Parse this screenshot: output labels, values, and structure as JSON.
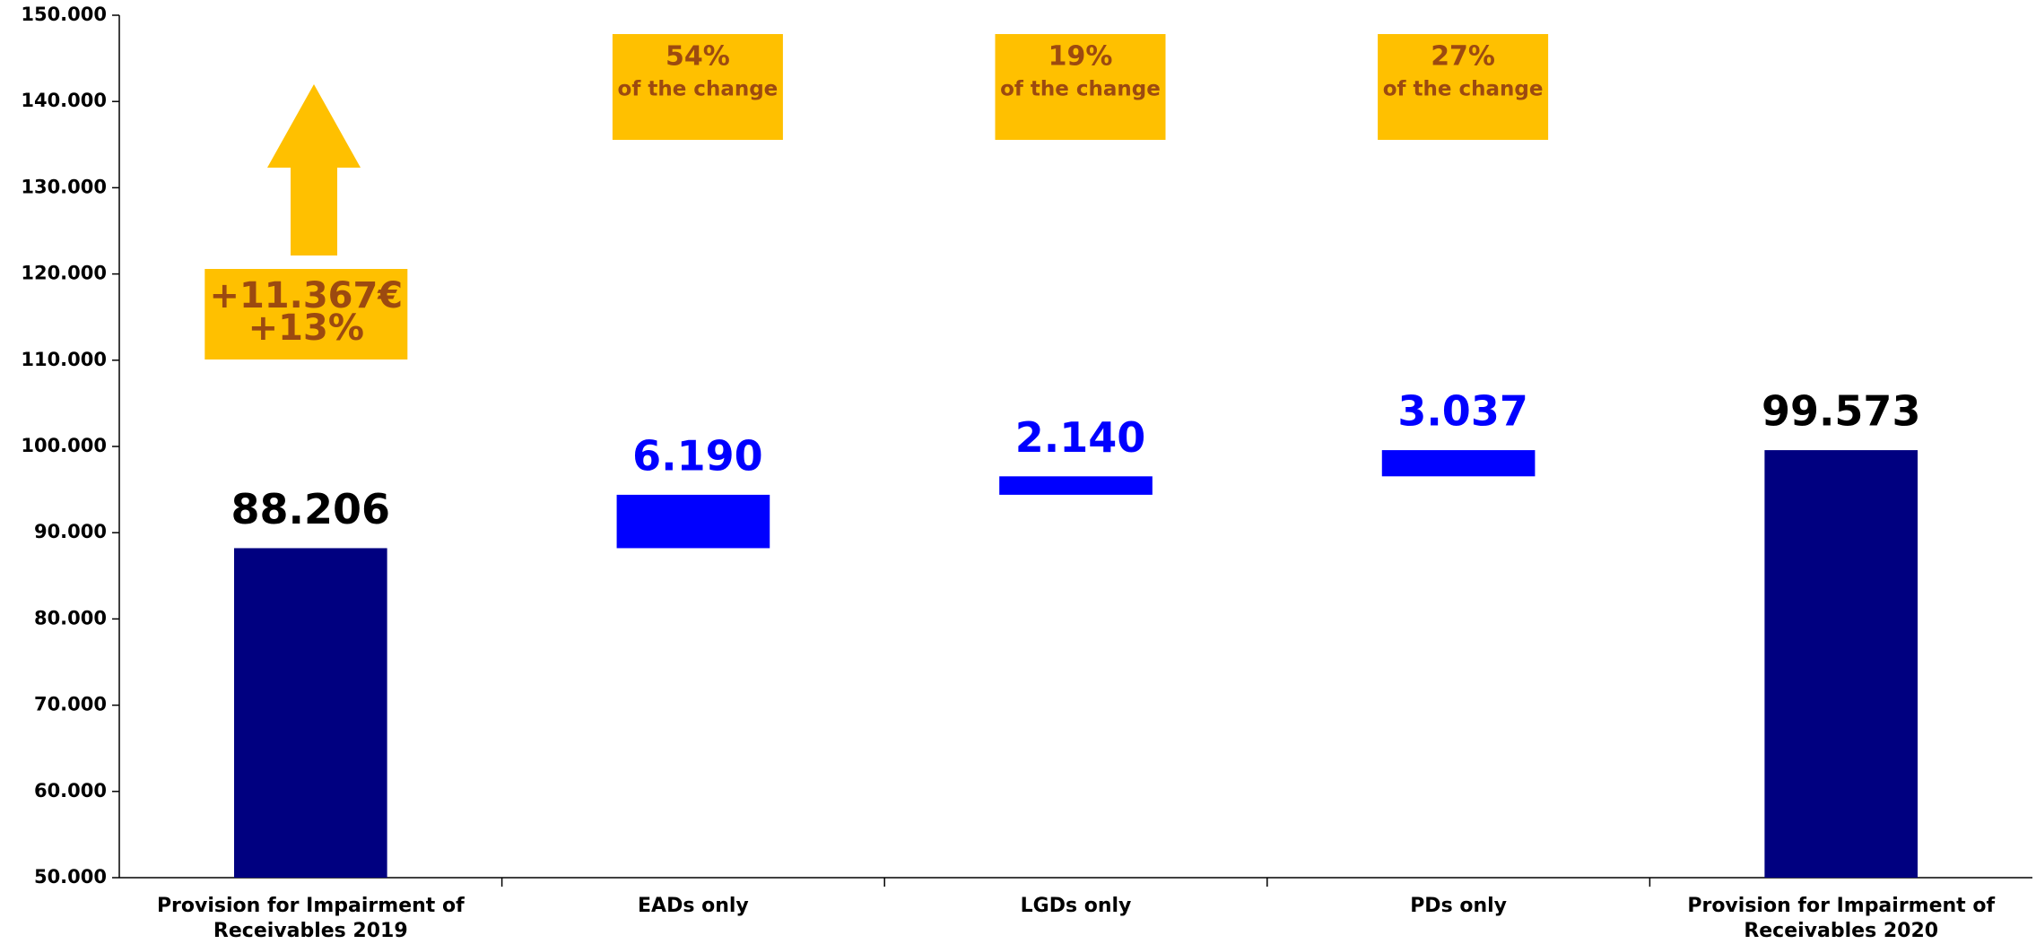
{
  "chart_data": {
    "type": "waterfall",
    "categories": [
      "Provision for Impairment of Receivables 2019",
      "EADs only",
      "LGDs only",
      "PDs only",
      "Provision for Impairment of Receivables 2020"
    ],
    "values": [
      88206,
      6190,
      2140,
      3037,
      99573
    ],
    "value_labels": [
      "88.206",
      "6.190",
      "2.140",
      "3.037",
      "99.573"
    ],
    "measures": [
      "absolute",
      "relative",
      "relative",
      "relative",
      "total"
    ],
    "bar_colors": [
      "#000080",
      "#0000ff",
      "#0000ff",
      "#0000ff",
      "#000080"
    ],
    "label_colors": [
      "#000000",
      "#0000ff",
      "#0000ff",
      "#0000ff",
      "#000000"
    ],
    "ylim": [
      50000,
      150000
    ],
    "yticks": [
      {
        "value": 50000,
        "label": "50.000"
      },
      {
        "value": 60000,
        "label": "60.000"
      },
      {
        "value": 70000,
        "label": "70.000"
      },
      {
        "value": 80000,
        "label": "80.000"
      },
      {
        "value": 90000,
        "label": "90.000"
      },
      {
        "value": 100000,
        "label": "100.000"
      },
      {
        "value": 110000,
        "label": "110.000"
      },
      {
        "value": 120000,
        "label": "120.000"
      },
      {
        "value": 130000,
        "label": "130.000"
      },
      {
        "value": 140000,
        "label": "140.000"
      },
      {
        "value": 150000,
        "label": "150.000"
      }
    ],
    "grid": false,
    "annotations": [
      {
        "lines": [
          "+11.367€",
          "+13%"
        ]
      },
      {
        "lines": [
          "54%",
          "of the change"
        ]
      },
      {
        "lines": [
          "19%",
          "of the change"
        ]
      },
      {
        "lines": [
          "27%",
          "of the change"
        ]
      }
    ]
  }
}
